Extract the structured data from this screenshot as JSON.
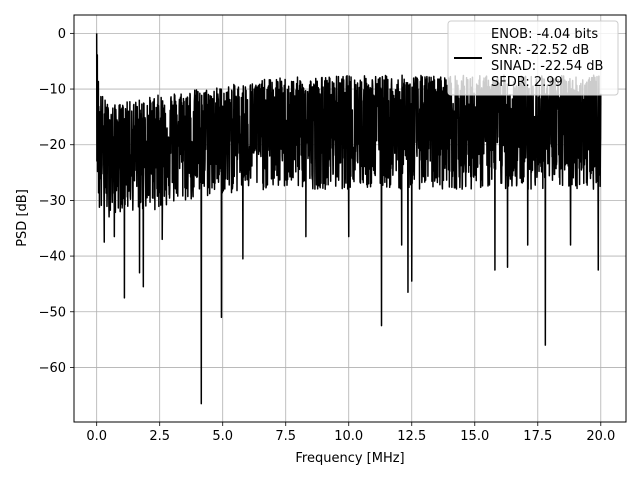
{
  "chart_data": {
    "type": "line",
    "title": "",
    "xlabel": "Frequency [MHz]",
    "ylabel": "PSD [dB]",
    "xlim": [
      -0.9,
      21.0
    ],
    "ylim": [
      -69.8,
      3.3
    ],
    "xticks": [
      0.0,
      2.5,
      5.0,
      7.5,
      10.0,
      12.5,
      15.0,
      17.5,
      20.0
    ],
    "xtick_labels": [
      "0.0",
      "2.5",
      "5.0",
      "7.5",
      "10.0",
      "12.5",
      "15.0",
      "17.5",
      "20.0"
    ],
    "yticks": [
      0,
      -10,
      -20,
      -30,
      -40,
      -50,
      -60
    ],
    "ytick_labels": [
      "0",
      "−10",
      "−20",
      "−30",
      "−40",
      "−50",
      "−60"
    ],
    "grid": true,
    "legend_position": "top-right",
    "line_color": "#000000",
    "legend": {
      "lines": [
        "ENOB: -4.04 bits",
        "SNR: -22.52 dB",
        "SINAD: -22.54 dB",
        "SFDR: 2.99"
      ]
    },
    "series": [
      {
        "name": "ENOB: -4.04 bits",
        "x_start": 0.0,
        "x_end": 20.0,
        "envelope_x": [
          0.0,
          0.1,
          0.5,
          1.0,
          2.0,
          3.0,
          4.0,
          5.0,
          7.0,
          10.0,
          12.5,
          15.0,
          17.5,
          20.0
        ],
        "envelope_upper": [
          0.0,
          -10.0,
          -13.0,
          -12.5,
          -11.5,
          -10.5,
          -10.0,
          -9.5,
          -8.0,
          -7.5,
          -7.5,
          -7.5,
          -7.5,
          -7.5
        ],
        "envelope_lower": [
          -22.0,
          -33.0,
          -33.0,
          -32.0,
          -32.0,
          -31.0,
          -30.0,
          -29.0,
          -28.0,
          -28.0,
          -28.0,
          -28.0,
          -28.0,
          -28.0
        ],
        "baseline": [
          -21.5,
          -21.5,
          -21.0,
          -21.0,
          -20.5,
          -19.5,
          -19.0,
          -18.5,
          -18.0,
          -18.0,
          -18.0,
          -18.0,
          -18.0,
          -18.0
        ],
        "dips": [
          {
            "x": 0.3,
            "y": -37.5
          },
          {
            "x": 0.7,
            "y": -36.5
          },
          {
            "x": 1.1,
            "y": -47.5
          },
          {
            "x": 1.7,
            "y": -43.0
          },
          {
            "x": 1.85,
            "y": -45.5
          },
          {
            "x": 2.6,
            "y": -37.0
          },
          {
            "x": 4.15,
            "y": -66.5
          },
          {
            "x": 4.95,
            "y": -51.0
          },
          {
            "x": 5.8,
            "y": -40.5
          },
          {
            "x": 8.3,
            "y": -36.5
          },
          {
            "x": 10.0,
            "y": -36.5
          },
          {
            "x": 11.3,
            "y": -52.5
          },
          {
            "x": 12.1,
            "y": -38.0
          },
          {
            "x": 12.35,
            "y": -46.5
          },
          {
            "x": 12.5,
            "y": -44.5
          },
          {
            "x": 15.8,
            "y": -42.5
          },
          {
            "x": 16.3,
            "y": -42.0
          },
          {
            "x": 17.1,
            "y": -38.0
          },
          {
            "x": 17.8,
            "y": -56.0
          },
          {
            "x": 18.8,
            "y": -38.0
          },
          {
            "x": 19.9,
            "y": -42.5
          }
        ]
      }
    ]
  }
}
